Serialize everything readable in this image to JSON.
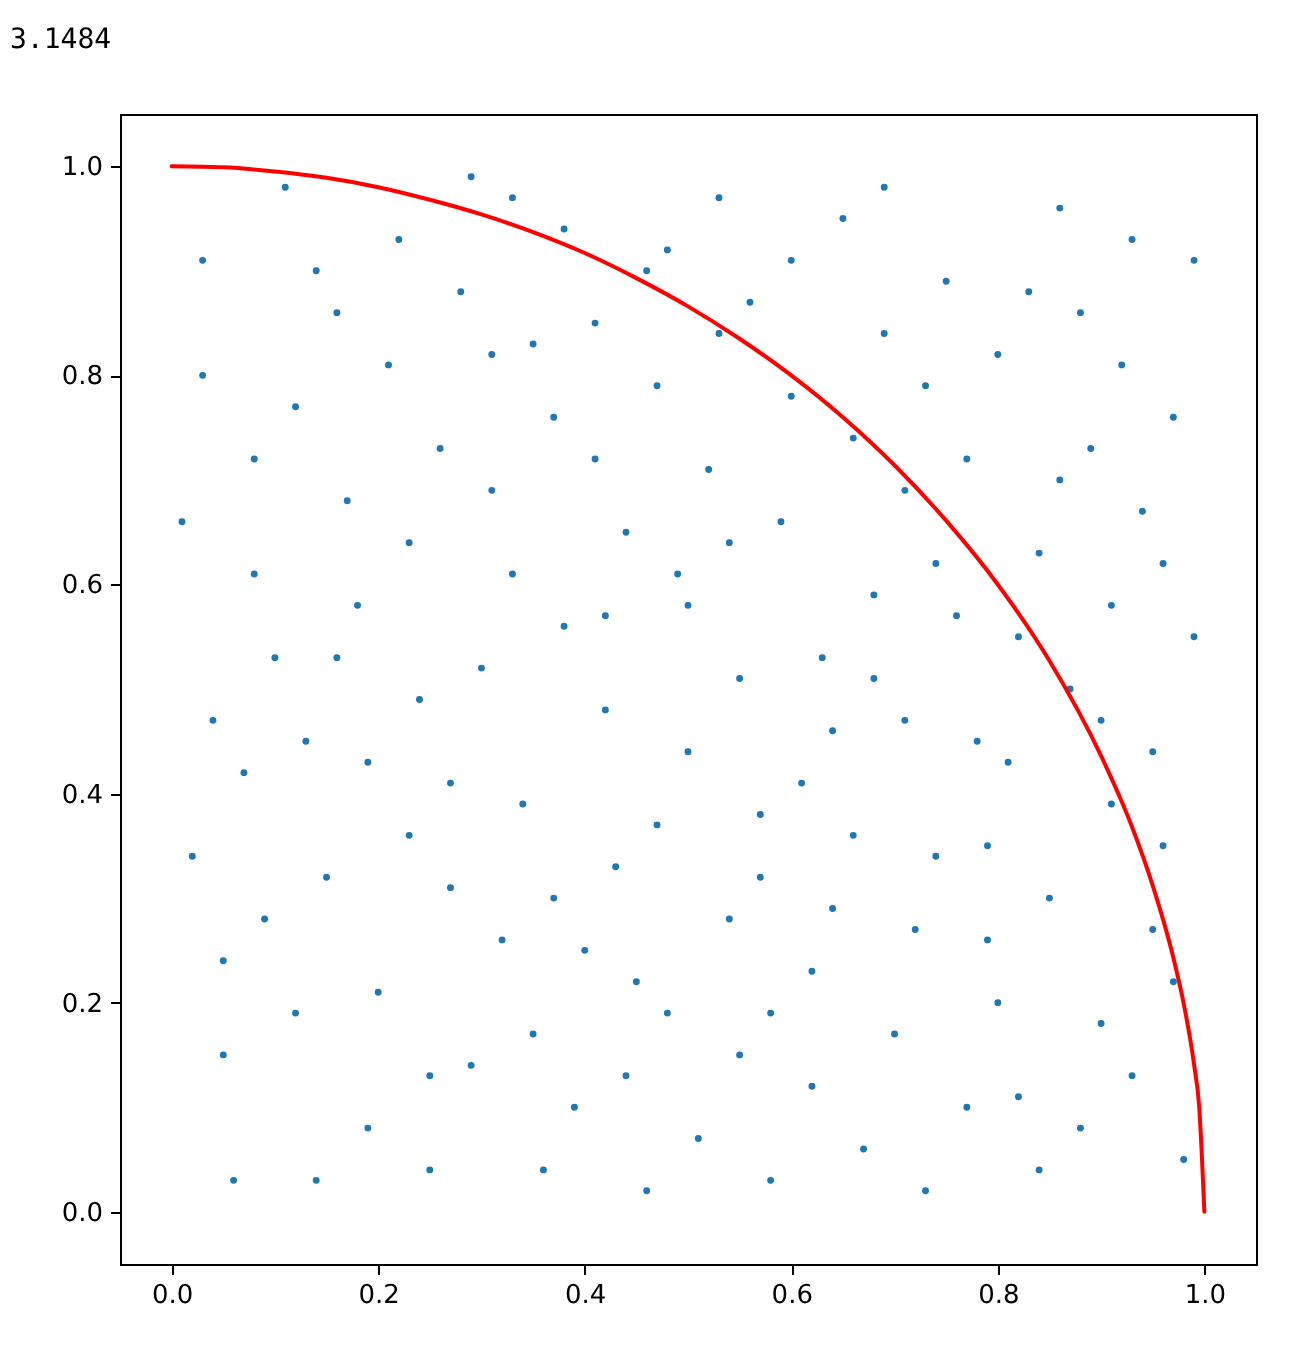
{
  "chart_data": {
    "type": "scatter",
    "title": "3.1484",
    "xlim": [
      -0.05,
      1.05
    ],
    "ylim": [
      -0.05,
      1.05
    ],
    "xticks": [
      {
        "value": 0,
        "label": "0.0"
      },
      0.2,
      0.4,
      0.6,
      0.8,
      {
        "value": 1,
        "label": "1.0"
      }
    ],
    "yticks": [
      {
        "value": 0,
        "label": "0.0"
      },
      0.2,
      0.4,
      0.6,
      0.8,
      {
        "value": 1,
        "label": "1.0"
      }
    ],
    "grid": false,
    "series": [
      {
        "color": "#1f77b4",
        "marker": "circle",
        "x": [
          0.03,
          0.07,
          0.12,
          0.05,
          0.18,
          0.22,
          0.27,
          0.31,
          0.36,
          0.41,
          0.45,
          0.49,
          0.53,
          0.57,
          0.62,
          0.66,
          0.71,
          0.75,
          0.79,
          0.84,
          0.88,
          0.92,
          0.96,
          0.99,
          0.01,
          0.09,
          0.14,
          0.16,
          0.24,
          0.29,
          0.33,
          0.38,
          0.43,
          0.47,
          0.51,
          0.55,
          0.6,
          0.64,
          0.68,
          0.73,
          0.77,
          0.81,
          0.86,
          0.9,
          0.94,
          0.98,
          0.04,
          0.11,
          0.2,
          0.26,
          0.34,
          0.39,
          0.44,
          0.5,
          0.58,
          0.63,
          0.69,
          0.74,
          0.82,
          0.87,
          0.93,
          0.97,
          0.02,
          0.08,
          0.13,
          0.19,
          0.23,
          0.28,
          0.32,
          0.37,
          0.42,
          0.46,
          0.52,
          0.56,
          0.61,
          0.67,
          0.72,
          0.76,
          0.8,
          0.85,
          0.89,
          0.95,
          0.06,
          0.1,
          0.15,
          0.21,
          0.25,
          0.3,
          0.35,
          0.4,
          0.48,
          0.54,
          0.59,
          0.65,
          0.7,
          0.78,
          0.83,
          0.91,
          0.97,
          0.03,
          0.17,
          0.12,
          0.27,
          0.33,
          0.38,
          0.44,
          0.5,
          0.55,
          0.6,
          0.66,
          0.71,
          0.77,
          0.82,
          0.88,
          0.93,
          0.99,
          0.08,
          0.23,
          0.29,
          0.35,
          0.41,
          0.47,
          0.53,
          0.58,
          0.64,
          0.69,
          0.74,
          0.8,
          0.86,
          0.91,
          0.95,
          0.05,
          0.14,
          0.19,
          0.25,
          0.31,
          0.37,
          0.42,
          0.48,
          0.54,
          0.62,
          0.68,
          0.73,
          0.79,
          0.84,
          0.9,
          0.96,
          0.16,
          0.46,
          0.57
        ],
        "values": [
          0.91,
          0.42,
          0.77,
          0.15,
          0.58,
          0.93,
          0.31,
          0.69,
          0.04,
          0.85,
          0.22,
          0.61,
          0.97,
          0.38,
          0.12,
          0.74,
          0.47,
          0.89,
          0.26,
          0.63,
          0.08,
          0.81,
          0.35,
          0.55,
          0.66,
          0.28,
          0.03,
          0.86,
          0.49,
          0.14,
          0.97,
          0.56,
          0.33,
          0.79,
          0.07,
          0.51,
          0.91,
          0.29,
          0.59,
          0.02,
          0.72,
          0.43,
          0.96,
          0.18,
          0.67,
          0.05,
          0.47,
          0.98,
          0.21,
          0.73,
          0.39,
          0.1,
          0.65,
          0.44,
          0.19,
          0.53,
          0.84,
          0.34,
          0.11,
          0.5,
          0.93,
          0.22,
          0.34,
          0.72,
          0.45,
          0.08,
          0.64,
          0.88,
          0.26,
          0.76,
          0.48,
          0.02,
          0.71,
          0.87,
          0.41,
          0.06,
          0.27,
          0.57,
          0.82,
          0.3,
          0.73,
          0.44,
          0.03,
          0.53,
          0.32,
          0.81,
          0.04,
          0.52,
          0.83,
          0.25,
          0.92,
          0.28,
          0.66,
          0.95,
          0.17,
          0.45,
          0.88,
          0.39,
          0.76,
          0.8,
          0.68,
          0.19,
          0.41,
          0.61,
          0.94,
          0.13,
          0.58,
          0.15,
          0.78,
          0.36,
          0.69,
          0.1,
          0.55,
          0.86,
          0.13,
          0.91,
          0.61,
          0.36,
          0.99,
          0.17,
          0.72,
          0.37,
          0.84,
          0.03,
          0.46,
          0.98,
          0.62,
          0.2,
          0.7,
          0.58,
          0.27,
          0.24,
          0.9,
          0.43,
          0.13,
          0.82,
          0.3,
          0.57,
          0.19,
          0.64,
          0.23,
          0.51,
          0.79,
          0.35,
          0.04,
          0.47,
          0.62,
          0.53,
          0.9,
          0.32
        ]
      },
      {
        "type": "line",
        "color": "#ff0000",
        "x": [
          0,
          0.05,
          0.1,
          0.15,
          0.2,
          0.25,
          0.3,
          0.35,
          0.4,
          0.45,
          0.5,
          0.55,
          0.6,
          0.65,
          0.7,
          0.75,
          0.8,
          0.85,
          0.9,
          0.93,
          0.95,
          0.97,
          0.98,
          0.99,
          0.995,
          1
        ],
        "values": [
          1,
          0.999,
          0.995,
          0.989,
          0.98,
          0.968,
          0.954,
          0.937,
          0.917,
          0.893,
          0.866,
          0.835,
          0.8,
          0.76,
          0.714,
          0.661,
          0.6,
          0.527,
          0.436,
          0.368,
          0.312,
          0.243,
          0.199,
          0.141,
          0.1,
          0
        ]
      }
    ]
  }
}
